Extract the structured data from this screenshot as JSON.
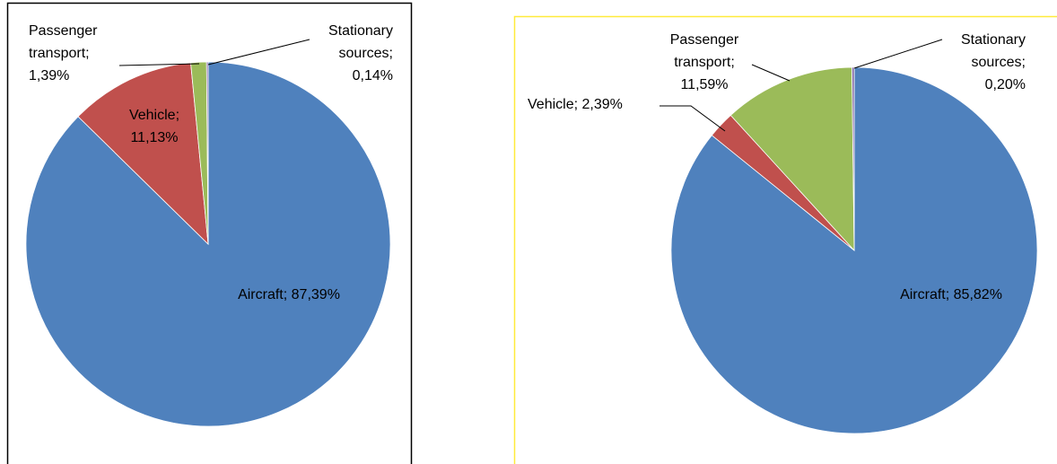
{
  "chart_data": [
    {
      "type": "pie",
      "label_separator": ";",
      "categories": [
        "Aircraft",
        "Vehicle",
        "Passenger transport",
        "Stationary sources"
      ],
      "values": [
        87.39,
        11.13,
        1.39,
        0.14
      ],
      "value_labels": [
        "87,39%",
        "11,13%",
        "1,39%",
        "0,14%"
      ],
      "colors": [
        "#4f81bd",
        "#c0504d",
        "#9bbb59",
        "#8064a2"
      ]
    },
    {
      "type": "pie",
      "label_separator": ";",
      "categories": [
        "Aircraft",
        "Vehicle",
        "Passenger transport",
        "Stationary sources"
      ],
      "values": [
        85.82,
        2.39,
        11.59,
        0.2
      ],
      "value_labels": [
        "85,82%",
        "2,39%",
        "11,59%",
        "0,20%"
      ],
      "colors": [
        "#4f81bd",
        "#c0504d",
        "#9bbb59",
        "#8064a2"
      ]
    }
  ]
}
